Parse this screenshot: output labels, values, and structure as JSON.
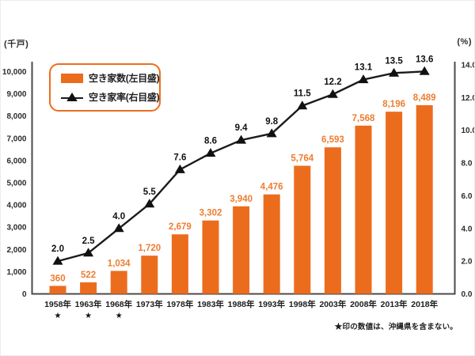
{
  "chart_data": {
    "type": "bar",
    "title": "",
    "categories": [
      "1958年",
      "1963年",
      "1968年",
      "1973年",
      "1978年",
      "1983年",
      "1988年",
      "1993年",
      "1998年",
      "2003年",
      "2008年",
      "2013年",
      "2018年"
    ],
    "starred_category_indices": [
      0,
      1,
      2
    ],
    "star_symbol": "★",
    "series": [
      {
        "name": "空き家数(左目盛)",
        "type": "bar",
        "axis": "left",
        "values": [
          360,
          522,
          1034,
          1720,
          2679,
          3302,
          3940,
          4476,
          5764,
          6593,
          7568,
          8196,
          8489
        ]
      },
      {
        "name": "空き家率(右目盛)",
        "type": "line",
        "axis": "right",
        "values": [
          2.0,
          2.5,
          4.0,
          5.5,
          7.6,
          8.6,
          9.4,
          9.8,
          11.5,
          12.2,
          13.1,
          13.5,
          13.6
        ]
      }
    ],
    "left_axis": {
      "unit": "(千戸)",
      "min": 0,
      "max": 10000,
      "step": 1000
    },
    "right_axis": {
      "unit": "(%)",
      "min": 0,
      "max": 14,
      "step": 2
    },
    "legend_position": "top-left",
    "grid": false,
    "footnote": "★印の数値は、沖縄県を含まない。",
    "colors": {
      "bar": "#ec6c1e",
      "bar_label": "#ed7d31",
      "line": "#1b1b1b",
      "marker": "#111111",
      "axis": "#4b4b4b",
      "tick_text": "#2b2b2b",
      "year_text": "#1d1d1d",
      "legend_border": "#ed6d1d"
    }
  }
}
